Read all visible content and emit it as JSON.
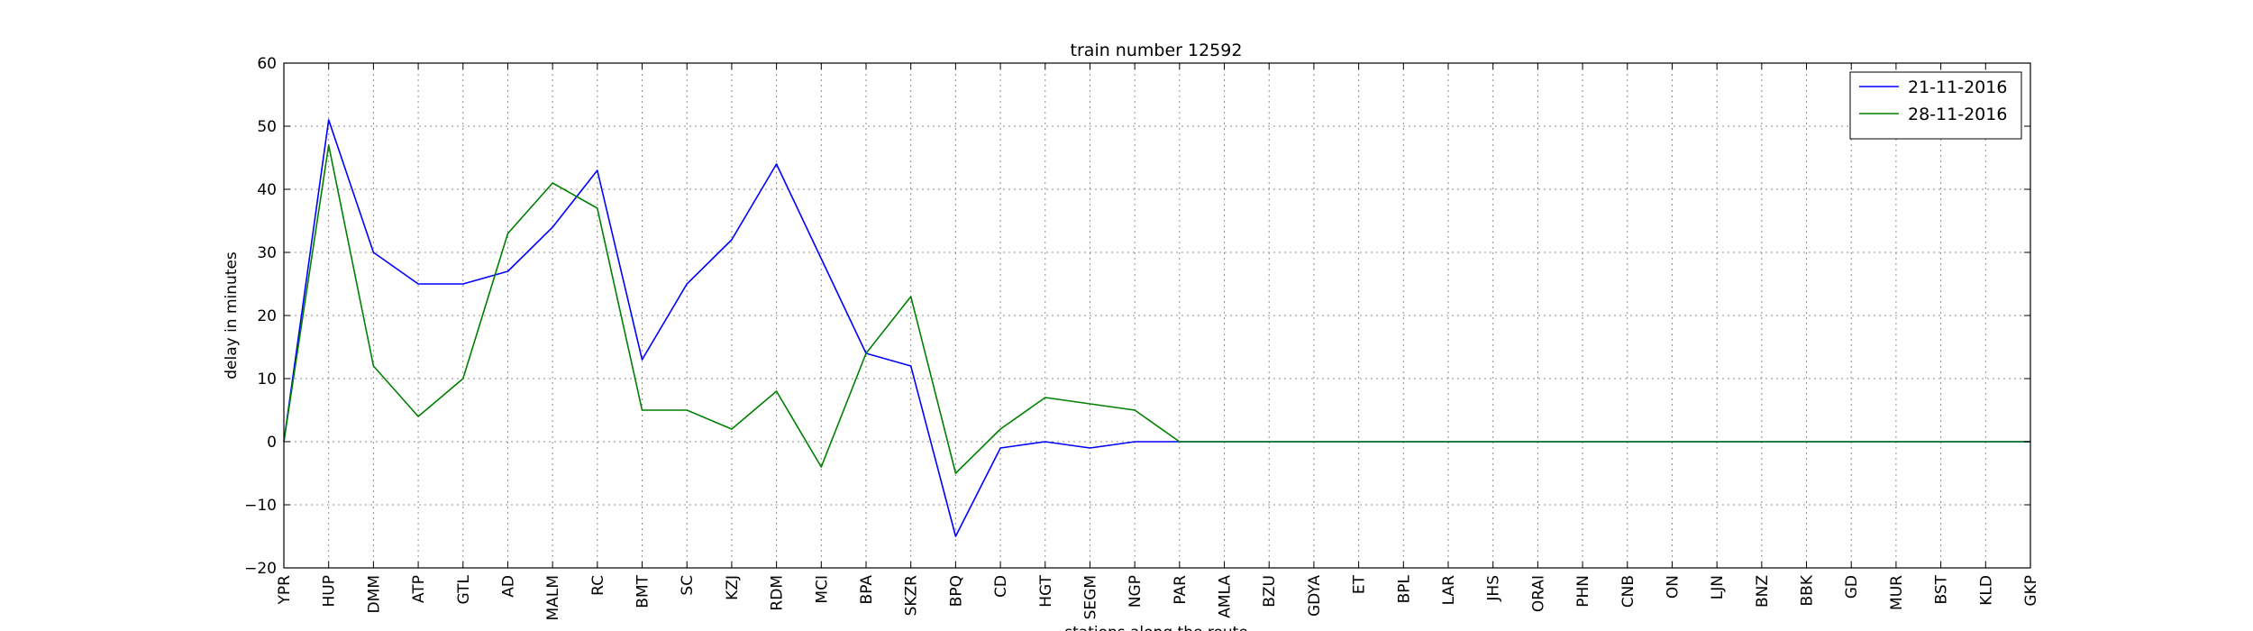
{
  "chart_data": {
    "type": "line",
    "title": "train number 12592",
    "xlabel": "stations along the route",
    "ylabel": "delay in minutes",
    "categories": [
      "YPR",
      "HUP",
      "DMM",
      "ATP",
      "GTL",
      "AD",
      "MALM",
      "RC",
      "BMT",
      "SC",
      "KZJ",
      "RDM",
      "MCI",
      "BPA",
      "SKZR",
      "BPQ",
      "CD",
      "HGT",
      "SEGM",
      "NGP",
      "PAR",
      "AMLA",
      "BZU",
      "GDYA",
      "ET",
      "BPL",
      "LAR",
      "JHS",
      "ORAI",
      "PHN",
      "CNB",
      "ON",
      "LJN",
      "BNZ",
      "BBK",
      "GD",
      "MUR",
      "BST",
      "KLD",
      "GKP"
    ],
    "ylim": [
      -20,
      60
    ],
    "yticks": [
      -20,
      -10,
      0,
      10,
      20,
      30,
      40,
      50,
      60
    ],
    "ytick_labels": [
      "−20",
      "−10",
      "0",
      "10",
      "20",
      "30",
      "40",
      "50",
      "60"
    ],
    "grid": true,
    "legend_position": "top-right",
    "series": [
      {
        "name": "21-11-2016",
        "color": "#0000ff",
        "values": [
          0,
          51,
          30,
          25,
          25,
          27,
          34,
          43,
          13,
          25,
          32,
          44,
          29,
          14,
          12,
          -15,
          -1,
          0,
          -1,
          0,
          0,
          0,
          0,
          0,
          0,
          0,
          0,
          0,
          0,
          0,
          0,
          0,
          0,
          0,
          0,
          0,
          0,
          0,
          0,
          0
        ]
      },
      {
        "name": "28-11-2016",
        "color": "#008000",
        "values": [
          0,
          47,
          12,
          4,
          10,
          33,
          41,
          37,
          5,
          5,
          2,
          8,
          -4,
          14,
          23,
          -5,
          2,
          7,
          6,
          5,
          0,
          0,
          0,
          0,
          0,
          0,
          0,
          0,
          0,
          0,
          0,
          0,
          0,
          0,
          0,
          0,
          0,
          0,
          0,
          0
        ]
      }
    ]
  }
}
